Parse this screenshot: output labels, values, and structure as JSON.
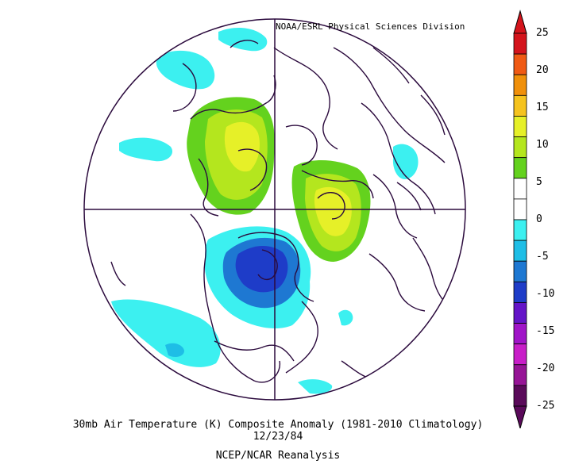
{
  "credit": "NOAA/ESRL Physical Sciences Division",
  "title": "30mb Air Temperature (K) Composite Anomaly (1981-2010 Climatology)",
  "date": "12/23/84",
  "source": "NCEP/NCAR Reanalysis",
  "colorbar": {
    "ticks": [
      "25",
      "20",
      "15",
      "10",
      "5",
      "0",
      "-5",
      "-10",
      "-15",
      "-20",
      "-25"
    ],
    "colors": [
      "#d4141c",
      "#f05a14",
      "#f0900a",
      "#f5c31e",
      "#e6f028",
      "#b4e61e",
      "#64d21e",
      "#ffffff",
      "#ffffff",
      "#3cf0f0",
      "#1ebee6",
      "#1e78d2",
      "#1e3cc8",
      "#6414c8",
      "#a014c8",
      "#c81ec8",
      "#961496",
      "#5a0a5a"
    ],
    "colors_note": ""
  },
  "map": {
    "land_color": "#2b0a3d",
    "anomaly_regions": [
      {
        "name": "positive-anomaly-arctic",
        "level": 10
      },
      {
        "name": "positive-anomaly-europe",
        "level": 10
      },
      {
        "name": "negative-anomaly-north-america",
        "level": -10
      }
    ]
  }
}
